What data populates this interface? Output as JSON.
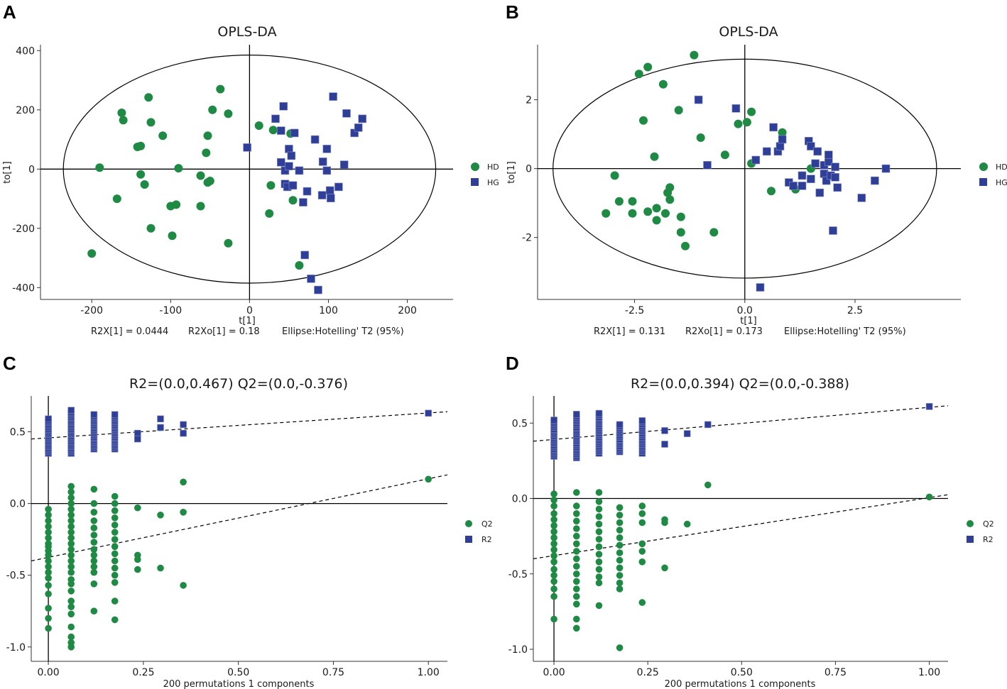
{
  "colors": {
    "hd": "#1e8a44",
    "hg": "#2f3f98",
    "axis": "#000000",
    "frame": "#333333"
  },
  "chart_data": [
    {
      "panel": "A",
      "type": "scatter",
      "title": "OPLS-DA",
      "xlabel": "t[1]",
      "ylabel": "to[1]",
      "xlim": [
        -265,
        258
      ],
      "ylim": [
        -440,
        420
      ],
      "xticks": [
        -200,
        -100,
        0,
        100,
        200
      ],
      "xtick_labels": [
        "-200",
        "-100",
        "0",
        "100",
        "200"
      ],
      "yticks": [
        -400,
        -200,
        0,
        200,
        400
      ],
      "ytick_labels": [
        "-400",
        "-200",
        "0",
        "200",
        "400"
      ],
      "ellipse": {
        "rx": 236,
        "ry": 385
      },
      "footnote": {
        "r2x": "R2X[1]  =  0.0444",
        "r2xo": "R2Xo[1]  =  0.18",
        "ellipse": "Ellipse:Hotelling' T2 (95%)"
      },
      "legend": [
        "HD",
        "HG"
      ],
      "series": [
        {
          "name": "HD",
          "marker": "circle",
          "points": [
            [
              -200,
              -285
            ],
            [
              -190,
              5
            ],
            [
              -168,
              -100
            ],
            [
              -162,
              190
            ],
            [
              -160,
              165
            ],
            [
              -142,
              75
            ],
            [
              -138,
              78
            ],
            [
              -138,
              -18
            ],
            [
              -133,
              -52
            ],
            [
              -128,
              242
            ],
            [
              -125,
              158
            ],
            [
              -125,
              -200
            ],
            [
              -110,
              113
            ],
            [
              -100,
              -125
            ],
            [
              -98,
              -225
            ],
            [
              -93,
              -120
            ],
            [
              -90,
              3
            ],
            [
              -62,
              -22
            ],
            [
              -62,
              -125
            ],
            [
              -55,
              55
            ],
            [
              -53,
              113
            ],
            [
              -53,
              -45
            ],
            [
              -50,
              -40
            ],
            [
              -47,
              200
            ],
            [
              -37,
              270
            ],
            [
              -27,
              187
            ],
            [
              -27,
              -250
            ],
            [
              12,
              147
            ],
            [
              25,
              -150
            ],
            [
              27,
              -55
            ],
            [
              30,
              132
            ],
            [
              52,
              120
            ],
            [
              55,
              -105
            ],
            [
              63,
              -325
            ]
          ]
        },
        {
          "name": "HG",
          "marker": "square",
          "points": [
            [
              -3,
              73
            ],
            [
              33,
              170
            ],
            [
              40,
              130
            ],
            [
              40,
              23
            ],
            [
              43,
              212
            ],
            [
              45,
              -50
            ],
            [
              45,
              -5
            ],
            [
              48,
              -60
            ],
            [
              50,
              10
            ],
            [
              50,
              68
            ],
            [
              53,
              45
            ],
            [
              55,
              -55
            ],
            [
              57,
              122
            ],
            [
              63,
              -5
            ],
            [
              68,
              -112
            ],
            [
              70,
              -290
            ],
            [
              73,
              -75
            ],
            [
              78,
              -370
            ],
            [
              83,
              100
            ],
            [
              87,
              -408
            ],
            [
              92,
              -88
            ],
            [
              93,
              25
            ],
            [
              98,
              68
            ],
            [
              98,
              -5
            ],
            [
              102,
              -72
            ],
            [
              103,
              -98
            ],
            [
              106,
              245
            ],
            [
              113,
              -60
            ],
            [
              120,
              15
            ],
            [
              123,
              188
            ],
            [
              133,
              122
            ],
            [
              138,
              140
            ],
            [
              143,
              170
            ]
          ]
        }
      ]
    },
    {
      "panel": "B",
      "type": "scatter",
      "title": "OPLS-DA",
      "xlabel": "t[1]",
      "ylabel": "to[1]",
      "xlim": [
        -4.7,
        4.9
      ],
      "ylim": [
        -3.8,
        3.6
      ],
      "xticks": [
        -2.5,
        0,
        2.5
      ],
      "xtick_labels": [
        "-2.5",
        "0.0",
        "2.5"
      ],
      "yticks": [
        -2,
        0,
        2
      ],
      "ytick_labels": [
        "-2",
        "0",
        "2"
      ],
      "ellipse": {
        "rx": 4.35,
        "ry": 3.18
      },
      "footnote": {
        "r2x": "R2X[1]  =  0.131",
        "r2xo": "R2Xo[1]  =  0.173",
        "ellipse": "Ellipse:Hotelling' T2 (95%)"
      },
      "legend": [
        "HD",
        "HG"
      ],
      "series": [
        {
          "name": "HD",
          "marker": "circle",
          "points": [
            [
              -3.15,
              -1.3
            ],
            [
              -2.95,
              -0.2
            ],
            [
              -2.85,
              -0.95
            ],
            [
              -2.55,
              -0.95
            ],
            [
              -2.55,
              -1.3
            ],
            [
              -2.4,
              2.75
            ],
            [
              -2.3,
              1.4
            ],
            [
              -2.2,
              -1.25
            ],
            [
              -2.2,
              2.95
            ],
            [
              -2.05,
              0.35
            ],
            [
              -2.0,
              -1.15
            ],
            [
              -2.0,
              -1.5
            ],
            [
              -1.85,
              2.45
            ],
            [
              -1.8,
              -1.3
            ],
            [
              -1.75,
              -0.7
            ],
            [
              -1.7,
              -0.55
            ],
            [
              -1.7,
              -0.9
            ],
            [
              -1.5,
              1.7
            ],
            [
              -1.45,
              -1.4
            ],
            [
              -1.45,
              -1.85
            ],
            [
              -1.35,
              -2.25
            ],
            [
              -1.15,
              3.3
            ],
            [
              -1.0,
              0.9
            ],
            [
              -0.7,
              -1.85
            ],
            [
              -0.45,
              0.4
            ],
            [
              -0.15,
              1.3
            ],
            [
              0.05,
              1.35
            ],
            [
              0.15,
              1.65
            ],
            [
              0.15,
              0.15
            ],
            [
              0.6,
              -0.65
            ],
            [
              0.85,
              1.05
            ],
            [
              1.15,
              -0.6
            ],
            [
              1.5,
              0.0
            ]
          ]
        },
        {
          "name": "HG",
          "marker": "square",
          "points": [
            [
              -1.05,
              2.0
            ],
            [
              -0.85,
              0.1
            ],
            [
              -0.2,
              1.75
            ],
            [
              0.25,
              0.25
            ],
            [
              0.5,
              0.5
            ],
            [
              0.65,
              1.2
            ],
            [
              0.75,
              0.5
            ],
            [
              0.8,
              0.65
            ],
            [
              0.85,
              0.85
            ],
            [
              1.0,
              -0.4
            ],
            [
              1.1,
              -0.5
            ],
            [
              1.3,
              -0.2
            ],
            [
              1.3,
              -0.5
            ],
            [
              1.45,
              0.8
            ],
            [
              1.5,
              0.65
            ],
            [
              1.5,
              -0.3
            ],
            [
              1.6,
              0.15
            ],
            [
              1.65,
              0.5
            ],
            [
              1.7,
              -0.7
            ],
            [
              1.8,
              -0.15
            ],
            [
              1.8,
              0.1
            ],
            [
              1.85,
              -0.35
            ],
            [
              1.9,
              0.2
            ],
            [
              1.9,
              0.4
            ],
            [
              1.95,
              -0.2
            ],
            [
              2.0,
              -1.8
            ],
            [
              2.05,
              0.05
            ],
            [
              2.05,
              -0.25
            ],
            [
              2.1,
              -0.55
            ],
            [
              2.65,
              -0.85
            ],
            [
              2.95,
              -0.35
            ],
            [
              3.2,
              0.0
            ],
            [
              0.35,
              -3.45
            ]
          ]
        }
      ]
    },
    {
      "panel": "C",
      "type": "scatter",
      "title": "R2=(0.0,0.467)   Q2=(0.0,-0.376)",
      "xlabel": "200 permutations 1 components",
      "ylabel": "",
      "xlim": [
        -0.045,
        1.05
      ],
      "ylim": [
        -1.1,
        0.75
      ],
      "xticks": [
        0,
        0.25,
        0.5,
        0.75,
        1.0
      ],
      "xtick_labels": [
        "0.00",
        "0.25",
        "0.50",
        "0.75",
        "1.00"
      ],
      "yticks": [
        -1.0,
        -0.5,
        0.0,
        0.5
      ],
      "ytick_labels": [
        "-1.0",
        "-0.5",
        "0.0",
        "0.5"
      ],
      "legend": [
        "Q2",
        "R2"
      ],
      "r2_line": [
        [
          -0.045,
          0.45
        ],
        [
          1.05,
          0.64
        ]
      ],
      "q2_line": [
        [
          -0.045,
          -0.4
        ],
        [
          1.05,
          0.2
        ]
      ],
      "r2_columns": [
        {
          "x": 0.0,
          "from": 0.35,
          "to": 0.6
        },
        {
          "x": 0.06,
          "from": 0.35,
          "to": 0.66
        },
        {
          "x": 0.12,
          "from": 0.38,
          "to": 0.63
        },
        {
          "x": 0.175,
          "from": 0.38,
          "to": 0.63
        }
      ],
      "r2_points": [
        [
          0.235,
          0.49
        ],
        [
          0.235,
          0.45
        ],
        [
          0.295,
          0.59
        ],
        [
          0.295,
          0.53
        ],
        [
          0.355,
          0.55
        ],
        [
          0.355,
          0.49
        ],
        [
          1.0,
          0.63
        ]
      ],
      "q2_columns": [
        {
          "x": 0.0,
          "values": [
            -0.04,
            -0.08,
            -0.12,
            -0.16,
            -0.2,
            -0.24,
            -0.28,
            -0.3,
            -0.33,
            -0.36,
            -0.4,
            -0.44,
            -0.48,
            -0.52,
            -0.57,
            -0.63,
            -0.73,
            -0.8,
            -0.87
          ]
        },
        {
          "x": 0.06,
          "values": [
            0.12,
            0.08,
            0.04,
            0.0,
            -0.04,
            -0.08,
            -0.12,
            -0.16,
            -0.2,
            -0.24,
            -0.28,
            -0.32,
            -0.36,
            -0.4,
            -0.44,
            -0.48,
            -0.53,
            -0.56,
            -0.61,
            -0.68,
            -0.72,
            -0.77,
            -0.86,
            -0.93,
            -0.97,
            -1.0
          ]
        },
        {
          "x": 0.12,
          "values": [
            0.1,
            0.0,
            -0.06,
            -0.12,
            -0.17,
            -0.22,
            -0.27,
            -0.32,
            -0.36,
            -0.4,
            -0.44,
            -0.48,
            -0.56,
            -0.75
          ]
        },
        {
          "x": 0.175,
          "values": [
            0.05,
            0.0,
            -0.05,
            -0.1,
            -0.15,
            -0.2,
            -0.25,
            -0.3,
            -0.35,
            -0.4,
            -0.45,
            -0.5,
            -0.55,
            -0.68,
            -0.81
          ]
        }
      ],
      "q2_points": [
        [
          0.235,
          -0.03
        ],
        [
          0.235,
          -0.36
        ],
        [
          0.235,
          -0.39
        ],
        [
          0.235,
          -0.46
        ],
        [
          0.295,
          -0.08
        ],
        [
          0.295,
          -0.45
        ],
        [
          0.355,
          0.15
        ],
        [
          0.355,
          -0.06
        ],
        [
          0.355,
          -0.57
        ],
        [
          1.0,
          0.17
        ]
      ]
    },
    {
      "panel": "D",
      "type": "scatter",
      "title": "R2=(0.0,0.394)   Q2=(0.0,-0.388)",
      "xlabel": "200 permutations 1 components",
      "ylabel": "",
      "xlim": [
        -0.055,
        1.05
      ],
      "ylim": [
        -1.08,
        0.68
      ],
      "xticks": [
        0,
        0.25,
        0.5,
        0.75,
        1.0
      ],
      "xtick_labels": [
        "0.00",
        "0.25",
        "0.50",
        "0.75",
        "1.00"
      ],
      "yticks": [
        -1.0,
        -0.5,
        0.0,
        0.5
      ],
      "ytick_labels": [
        "-1.0",
        "-0.5",
        "0.0",
        "0.5"
      ],
      "legend": [
        "Q2",
        "R2"
      ],
      "r2_line": [
        [
          -0.055,
          0.38
        ],
        [
          1.05,
          0.615
        ]
      ],
      "q2_line": [
        [
          -0.055,
          -0.4
        ],
        [
          1.05,
          0.025
        ]
      ],
      "r2_columns": [
        {
          "x": 0.0,
          "from": 0.28,
          "to": 0.53
        },
        {
          "x": 0.06,
          "from": 0.27,
          "to": 0.56
        },
        {
          "x": 0.12,
          "from": 0.3,
          "to": 0.57
        },
        {
          "x": 0.175,
          "from": 0.31,
          "to": 0.5
        },
        {
          "x": 0.235,
          "from": 0.3,
          "to": 0.52
        }
      ],
      "r2_points": [
        [
          0.295,
          0.45
        ],
        [
          0.295,
          0.36
        ],
        [
          0.355,
          0.43
        ],
        [
          0.41,
          0.49
        ],
        [
          1.0,
          0.61
        ]
      ],
      "q2_columns": [
        {
          "x": 0.0,
          "values": [
            0.03,
            -0.01,
            -0.05,
            -0.1,
            -0.14,
            -0.18,
            -0.22,
            -0.26,
            -0.3,
            -0.34,
            -0.38,
            -0.42,
            -0.47,
            -0.51,
            -0.55,
            -0.6,
            -0.65,
            -0.8
          ]
        },
        {
          "x": 0.06,
          "values": [
            0.04,
            -0.05,
            -0.1,
            -0.15,
            -0.2,
            -0.25,
            -0.3,
            -0.35,
            -0.4,
            -0.45,
            -0.5,
            -0.55,
            -0.6,
            -0.65,
            -0.7,
            -0.8,
            -0.86
          ]
        },
        {
          "x": 0.12,
          "values": [
            0.04,
            -0.02,
            -0.07,
            -0.12,
            -0.17,
            -0.22,
            -0.27,
            -0.32,
            -0.37,
            -0.42,
            -0.47,
            -0.52,
            -0.56,
            -0.71
          ]
        },
        {
          "x": 0.175,
          "values": [
            -0.06,
            -0.11,
            -0.16,
            -0.21,
            -0.26,
            -0.31,
            -0.36,
            -0.41,
            -0.46,
            -0.51,
            -0.56,
            -0.6,
            -0.99
          ]
        },
        {
          "x": 0.235,
          "values": [
            -0.05,
            -0.1,
            -0.16,
            -0.3,
            -0.35,
            -0.42,
            -0.69
          ]
        }
      ],
      "q2_points": [
        [
          0.295,
          -0.14
        ],
        [
          0.295,
          -0.16
        ],
        [
          0.295,
          -0.46
        ],
        [
          0.355,
          -0.17
        ],
        [
          0.41,
          0.09
        ],
        [
          1.0,
          0.01
        ]
      ]
    }
  ]
}
